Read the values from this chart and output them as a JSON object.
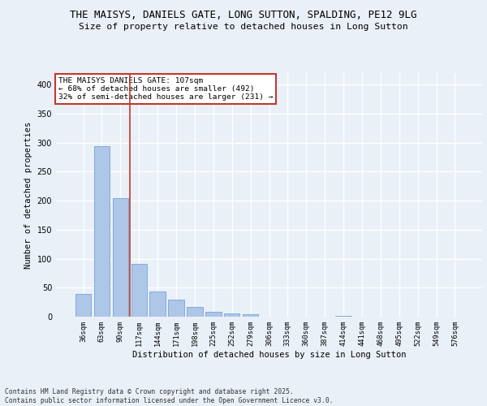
{
  "title_line1": "THE MAISYS, DANIELS GATE, LONG SUTTON, SPALDING, PE12 9LG",
  "title_line2": "Size of property relative to detached houses in Long Sutton",
  "xlabel": "Distribution of detached houses by size in Long Sutton",
  "ylabel": "Number of detached properties",
  "categories": [
    "36sqm",
    "63sqm",
    "90sqm",
    "117sqm",
    "144sqm",
    "171sqm",
    "198sqm",
    "225sqm",
    "252sqm",
    "279sqm",
    "306sqm",
    "333sqm",
    "360sqm",
    "387sqm",
    "414sqm",
    "441sqm",
    "468sqm",
    "495sqm",
    "522sqm",
    "549sqm",
    "576sqm"
  ],
  "values": [
    39,
    294,
    204,
    91,
    43,
    30,
    17,
    9,
    5,
    4,
    0,
    0,
    0,
    0,
    2,
    0,
    0,
    0,
    0,
    0,
    0
  ],
  "bar_color": "#aec6e8",
  "bar_edge_color": "#5b9bd5",
  "vline_x": 2.5,
  "vline_color": "#c0392b",
  "annotation_text": "THE MAISYS DANIELS GATE: 107sqm\n← 68% of detached houses are smaller (492)\n32% of semi-detached houses are larger (231) →",
  "annotation_box_color": "white",
  "annotation_box_edge_color": "#c0392b",
  "annotation_fontsize": 6.8,
  "ylim": [
    0,
    420
  ],
  "yticks": [
    0,
    50,
    100,
    150,
    200,
    250,
    300,
    350,
    400
  ],
  "background_color": "#eaf0f8",
  "plot_background_color": "#eaf0f8",
  "grid_color": "white",
  "title_fontsize": 9.0,
  "subtitle_fontsize": 8.2,
  "ylabel_fontsize": 7.5,
  "xlabel_fontsize": 7.5,
  "tick_fontsize": 6.2,
  "ytick_fontsize": 7.0,
  "footer_text": "Contains HM Land Registry data © Crown copyright and database right 2025.\nContains public sector information licensed under the Open Government Licence v3.0.",
  "footer_fontsize": 5.8
}
